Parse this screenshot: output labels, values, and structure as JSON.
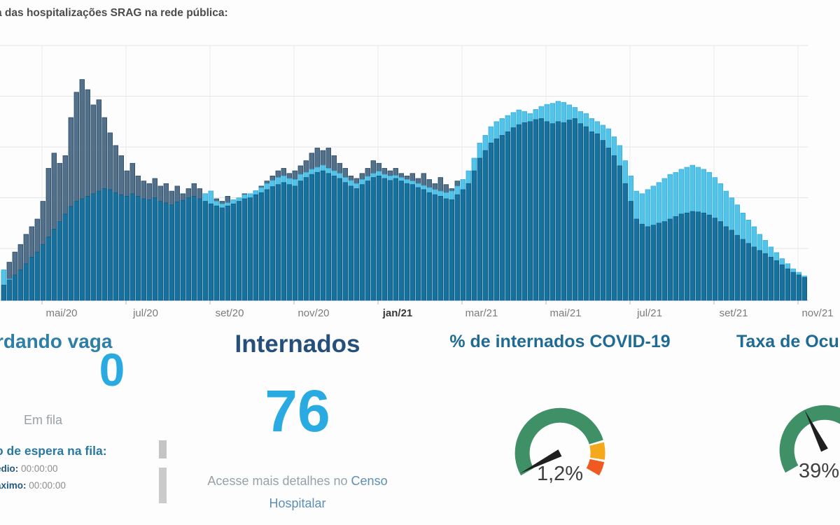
{
  "header": {
    "title": "a das hospitalizações SRAG na rede pública:"
  },
  "chart_data": {
    "type": "bar",
    "title": "",
    "xlabel": "",
    "ylabel": "",
    "x_axis": {
      "tick_labels": [
        "mai/20",
        "jul/20",
        "set/20",
        "nov/20",
        "jan/21",
        "mar/21",
        "mai/21",
        "jul/21",
        "set/21",
        "nov/21"
      ],
      "bold_label": "jan/21"
    },
    "y_axis": {
      "tick_labels_visible": false,
      "gridline_count": 5
    },
    "n_points": 144,
    "value_unit": "grid units (1 unit = one horizontal gridline interval)",
    "series": [
      {
        "name": "gray-bars-2020",
        "color": "#54718c",
        "stroke": "#2a4a66",
        "values": [
          0.55,
          0.75,
          0.95,
          1.1,
          1.3,
          1.45,
          1.6,
          1.95,
          2.6,
          2.9,
          2.7,
          2.85,
          3.6,
          4.1,
          4.35,
          4.15,
          3.85,
          3.95,
          3.6,
          3.3,
          3.05,
          2.85,
          2.55,
          2.7,
          2.45,
          2.35,
          2.3,
          2.4,
          2.25,
          2.3,
          2.15,
          2.25,
          2.1,
          2.2,
          2.3,
          2.2,
          2.1,
          2.15,
          2.0,
          1.95,
          2.05,
          1.95,
          2.0,
          2.1,
          2.05,
          2.15,
          2.25,
          2.35,
          2.45,
          2.55,
          2.6,
          2.5,
          2.55,
          2.65,
          2.75,
          2.9,
          3.0,
          2.95,
          3.0,
          2.85,
          2.7,
          2.6,
          2.45,
          2.4,
          2.5,
          2.6,
          2.75,
          2.7,
          2.6,
          2.55,
          2.6,
          2.5,
          2.45,
          2.5,
          2.4,
          2.5,
          2.38,
          2.3,
          2.42,
          2.28,
          2.2,
          2.35,
          2.22,
          2.05,
          1.75
        ]
      },
      {
        "name": "lightblue-bars",
        "color": "#53c3ea",
        "stroke": "#35b0dd",
        "values": [
          0.6,
          0.42,
          0,
          0,
          0,
          0,
          0,
          0,
          0,
          0,
          0,
          0,
          0,
          0,
          0,
          0,
          0,
          0,
          0,
          0,
          0,
          0,
          0,
          0,
          0,
          0,
          0,
          0,
          0,
          0,
          0,
          0,
          0,
          0,
          0,
          0,
          2.1,
          2.15,
          1.95,
          1.9,
          1.92,
          1.98,
          2.02,
          2.08,
          2.1,
          2.16,
          2.22,
          2.3,
          2.36,
          2.42,
          2.45,
          2.4,
          2.38,
          2.48,
          2.52,
          2.58,
          2.62,
          2.66,
          2.6,
          2.55,
          2.5,
          2.42,
          2.36,
          2.3,
          2.38,
          2.44,
          2.5,
          2.54,
          2.48,
          2.45,
          2.46,
          2.42,
          2.38,
          2.35,
          2.3,
          2.26,
          2.22,
          2.18,
          2.15,
          2.12,
          2.15,
          2.25,
          2.38,
          2.55,
          2.8,
          3.1,
          3.25,
          3.42,
          3.52,
          3.58,
          3.64,
          3.7,
          3.75,
          3.72,
          3.68,
          3.76,
          3.82,
          3.86,
          3.88,
          3.92,
          3.9,
          3.85,
          3.8,
          3.72,
          3.68,
          3.58,
          3.52,
          3.45,
          3.38,
          3.22,
          3.05,
          2.75,
          2.45,
          2.15,
          2.1,
          2.18,
          2.25,
          2.32,
          2.4,
          2.48,
          2.52,
          2.58,
          2.62,
          2.66,
          2.62,
          2.58,
          2.52,
          2.42,
          2.3,
          2.15,
          2.02,
          1.88,
          1.72,
          1.58,
          1.45,
          1.3,
          1.18,
          1.05,
          0.94,
          0.82,
          0.72,
          0.62,
          0.55,
          0.48
        ]
      },
      {
        "name": "blue-bars",
        "color": "#16719f",
        "stroke": "#0f5d85",
        "values": [
          0.3,
          0.4,
          0.5,
          0.6,
          0.72,
          0.85,
          0.95,
          1.1,
          1.25,
          1.4,
          1.55,
          1.7,
          1.85,
          1.95,
          2.0,
          2.05,
          2.1,
          2.15,
          2.2,
          2.18,
          2.12,
          2.08,
          2.05,
          2.1,
          2.05,
          2.0,
          1.98,
          2.02,
          1.95,
          1.92,
          1.88,
          1.94,
          1.97,
          2.02,
          2.05,
          2.0,
          1.95,
          1.9,
          1.86,
          1.82,
          1.86,
          1.9,
          1.95,
          2.0,
          2.02,
          2.08,
          2.12,
          2.18,
          2.24,
          2.28,
          2.32,
          2.28,
          2.25,
          2.35,
          2.42,
          2.48,
          2.52,
          2.55,
          2.5,
          2.45,
          2.4,
          2.32,
          2.25,
          2.2,
          2.28,
          2.35,
          2.42,
          2.45,
          2.4,
          2.36,
          2.4,
          2.35,
          2.3,
          2.28,
          2.22,
          2.18,
          2.12,
          2.08,
          2.05,
          2.0,
          1.98,
          2.08,
          2.18,
          2.3,
          2.55,
          2.8,
          2.95,
          3.1,
          3.18,
          3.25,
          3.32,
          3.4,
          3.46,
          3.5,
          3.52,
          3.56,
          3.58,
          3.52,
          3.48,
          3.52,
          3.5,
          3.55,
          3.58,
          3.48,
          3.42,
          3.32,
          3.28,
          3.15,
          3.0,
          2.85,
          2.65,
          2.3,
          1.95,
          1.6,
          1.5,
          1.45,
          1.48,
          1.52,
          1.55,
          1.6,
          1.65,
          1.7,
          1.72,
          1.75,
          1.74,
          1.72,
          1.68,
          1.62,
          1.55,
          1.45,
          1.38,
          1.28,
          1.2,
          1.12,
          1.05,
          0.98,
          0.92,
          0.85,
          0.78,
          0.7,
          0.62,
          0.55,
          0.5,
          0.45
        ]
      }
    ]
  },
  "cards": {
    "waiting": {
      "title": "rdando vaga",
      "value": "0",
      "sublabel": "Em fila",
      "queue_title": "o de espera na fila:",
      "rows": [
        {
          "label": "édio:",
          "value": "00:00:00"
        },
        {
          "label": "áximo:",
          "value": "00:00:00"
        }
      ]
    },
    "admitted": {
      "title": "Internados",
      "value": "76",
      "note_gray": "Acesse mais detalhes no ",
      "note_link_1": "Censo",
      "note_link_2": "Hospitalar"
    },
    "covid_pct": {
      "title": "% de internados COVID-19",
      "value_label": "1,2%",
      "value_percent": 1.2
    },
    "occupancy": {
      "title": "Taxa de Ocu",
      "value_label": "39%",
      "value_percent": 39
    }
  },
  "gauge_style": {
    "start_angle": 210,
    "end_angle": -30,
    "segments": [
      {
        "from": 0,
        "to": 0.806,
        "color": "#3f9066"
      },
      {
        "from": 0.818,
        "to": 0.912,
        "color": "#f6a81c"
      },
      {
        "from": 0.924,
        "to": 1,
        "color": "#ee5a21"
      }
    ],
    "needle_color": "#1f1f1f",
    "value_color": "#3f3f3f"
  }
}
